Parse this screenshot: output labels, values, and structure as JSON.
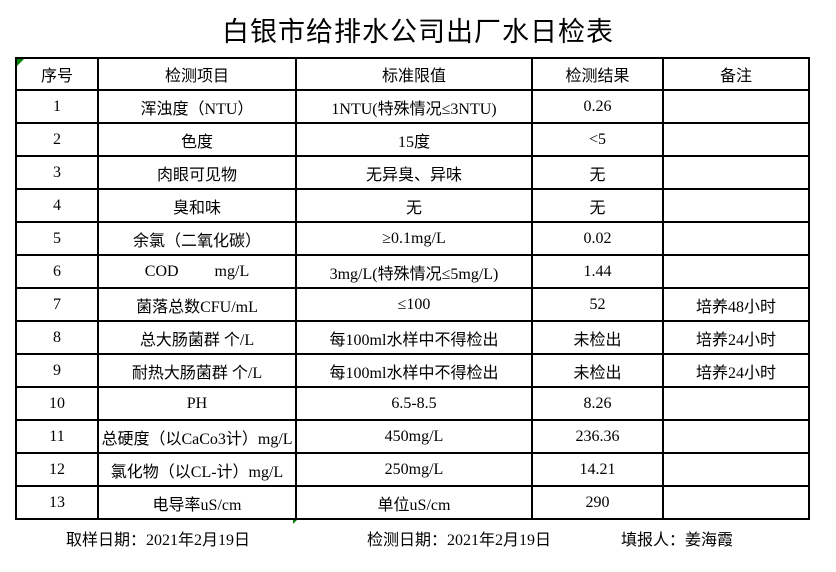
{
  "title": "白银市给排水公司出厂水日检表",
  "colors": {
    "text": "#000000",
    "border": "#000000",
    "background": "#ffffff",
    "marker_green": "#008000"
  },
  "table": {
    "headers": {
      "no": "序号",
      "item": "检测项目",
      "limit": "标准限值",
      "result": "检测结果",
      "note": "备注"
    },
    "rows": [
      {
        "no": "1",
        "item": "浑浊度（NTU）",
        "limit": "1NTU(特殊情况≤3NTU)",
        "result": "0.26",
        "note": ""
      },
      {
        "no": "2",
        "item": "色度",
        "limit": "15度",
        "result": "<5",
        "note": ""
      },
      {
        "no": "3",
        "item": "肉眼可见物",
        "limit": "无异臭、异味",
        "result": "无",
        "note": ""
      },
      {
        "no": "4",
        "item": "臭和味",
        "limit": "无",
        "result": "无",
        "note": ""
      },
      {
        "no": "5",
        "item": "余氯（二氧化碳）",
        "limit": "≥0.1mg/L",
        "result": "0.02",
        "note": ""
      },
      {
        "no": "6",
        "item": "COD         mg/L",
        "limit": "3mg/L(特殊情况≤5mg/L)",
        "result": "1.44",
        "note": ""
      },
      {
        "no": "7",
        "item": "菌落总数CFU/mL",
        "limit": "≤100",
        "result": "52",
        "note": "培养48小时"
      },
      {
        "no": "8",
        "item": "总大肠菌群 个/L",
        "limit": "每100ml水样中不得检出",
        "result": "未检出",
        "note": "培养24小时"
      },
      {
        "no": "9",
        "item": "耐热大肠菌群 个/L",
        "limit": "每100ml水样中不得检出",
        "result": "未检出",
        "note": "培养24小时"
      },
      {
        "no": "10",
        "item": "PH",
        "limit": "6.5-8.5",
        "result": "8.26",
        "note": ""
      },
      {
        "no": "11",
        "item": "总硬度（以CaCo3计）mg/L",
        "limit": "450mg/L",
        "result": "236.36",
        "note": ""
      },
      {
        "no": "12",
        "item": "氯化物（以CL-计）mg/L",
        "limit": "250mg/L",
        "result": "14.21",
        "note": ""
      },
      {
        "no": "13",
        "item": "电导率uS/cm",
        "limit": "单位uS/cm",
        "result": "290",
        "note": ""
      }
    ]
  },
  "footer": {
    "sample_date": "取样日期：2021年2月19日",
    "test_date": "检测日期：2021年2月19日",
    "reporter": "填报人：姜海霞"
  }
}
